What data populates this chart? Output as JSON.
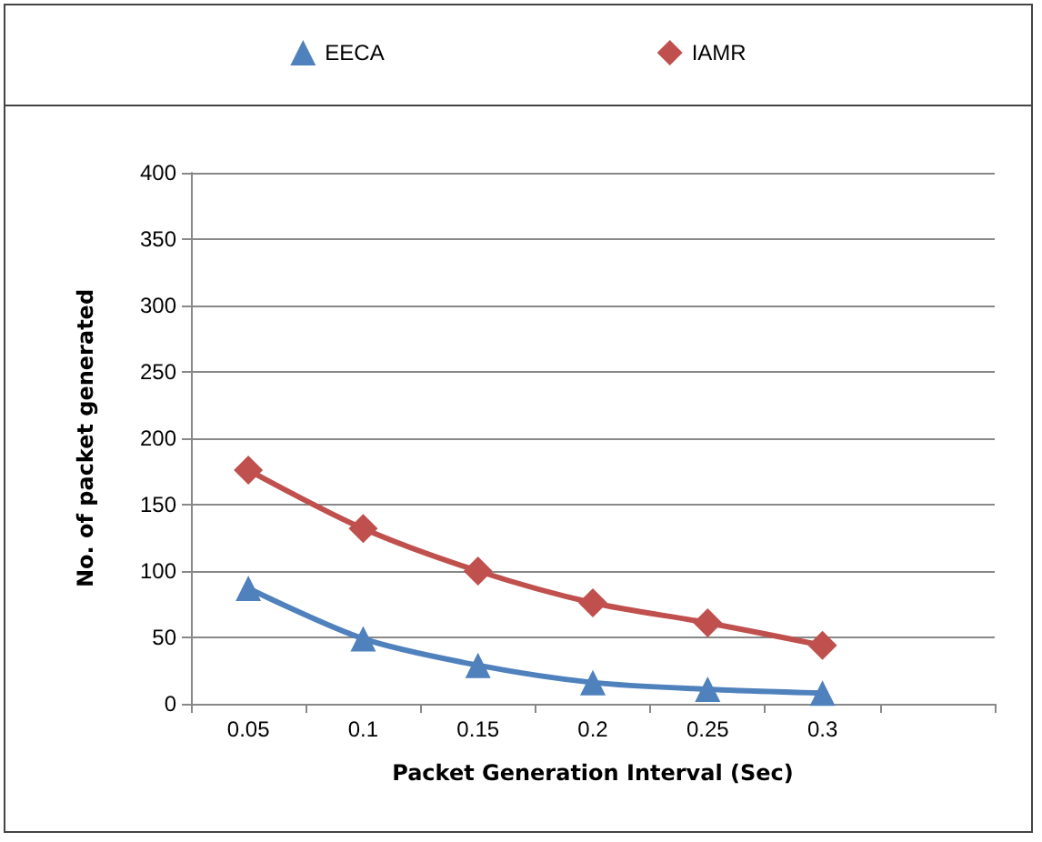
{
  "chart_data": {
    "type": "line",
    "xlabel": "Packet Generation Interval (Sec)",
    "ylabel": "No. of packet generated",
    "categories": [
      "0.05",
      "0.1",
      "0.15",
      "0.2",
      "0.25",
      "0.3",
      null
    ],
    "series": [
      {
        "name": "EECA",
        "color": "#4f81bd",
        "marker": "triangle",
        "values": [
          87,
          49,
          29,
          16,
          11,
          8,
          null
        ]
      },
      {
        "name": "IAMR",
        "color": "#c0504d",
        "marker": "diamond",
        "values": [
          176,
          132,
          100,
          76,
          61,
          44,
          null
        ]
      }
    ],
    "ylim": [
      0,
      400
    ],
    "yticks": [
      0,
      50,
      100,
      150,
      200,
      250,
      300,
      350,
      400
    ],
    "grid": "y",
    "legend": "top",
    "line_style": "solid"
  }
}
